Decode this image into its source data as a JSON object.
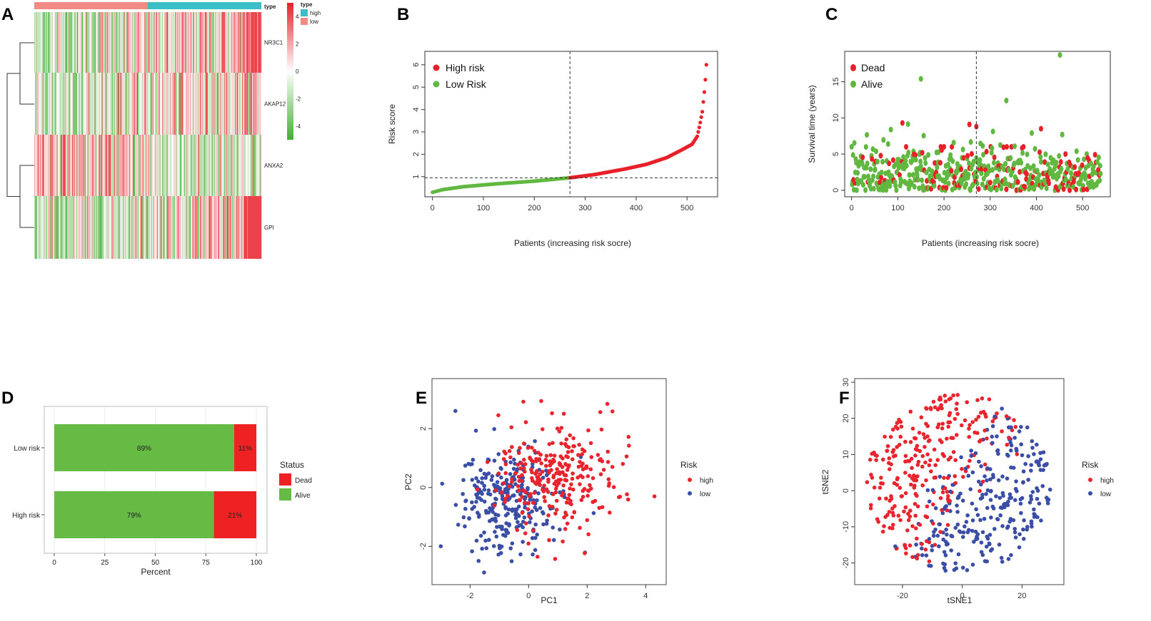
{
  "figure_labels": {
    "A": "A",
    "B": "B",
    "C": "C",
    "D": "D",
    "E": "E",
    "F": "F"
  },
  "chart_data": [
    {
      "id": "A",
      "type": "heatmap",
      "genes": [
        "NR3C1",
        "AKAP12",
        "ANXA2",
        "GPI"
      ],
      "annotation": {
        "title": "type",
        "groups": [
          "high",
          "low"
        ],
        "colors": {
          "high": "#3bbfc6",
          "low": "#f08a85"
        }
      },
      "scale": {
        "ticks": [
          4,
          2,
          0,
          -2,
          -4
        ],
        "min": -5,
        "max": 5,
        "colors": [
          "#40b030",
          "#ffffff",
          "#e8202a"
        ]
      },
      "n_patients": 540,
      "order": "low risk first, then high risk"
    },
    {
      "id": "B",
      "type": "scatter",
      "xlabel": "Patients (increasing risk socre)",
      "ylabel": "Risk score",
      "xticks": [
        0,
        100,
        200,
        300,
        400,
        500
      ],
      "yticks": [
        1,
        2,
        3,
        4,
        5,
        6
      ],
      "xlim": [
        -15,
        560
      ],
      "ylim": [
        0.1,
        6.6
      ],
      "cutoff_index": 270,
      "cutoff_value": 0.95,
      "n": 540,
      "series": [
        {
          "name": "High risk",
          "color": "#e8202a"
        },
        {
          "name": "Low Risk",
          "color": "#60b840"
        }
      ],
      "curve_knots": {
        "x": [
          0,
          20,
          60,
          120,
          200,
          270,
          320,
          380,
          420,
          460,
          490,
          510,
          520,
          525,
          530,
          535,
          538,
          540
        ],
        "y": [
          0.3,
          0.42,
          0.55,
          0.67,
          0.8,
          0.95,
          1.1,
          1.35,
          1.55,
          1.85,
          2.2,
          2.45,
          2.8,
          3.3,
          3.9,
          5.0,
          6.0,
          6.4
        ]
      }
    },
    {
      "id": "C",
      "type": "scatter",
      "xlabel": "Patients (increasing risk socre)",
      "ylabel": "Survival time (years)",
      "xticks": [
        0,
        100,
        200,
        300,
        400,
        500
      ],
      "yticks": [
        0,
        5,
        10,
        15
      ],
      "xlim": [
        -15,
        560
      ],
      "ylim": [
        -0.9,
        19.2
      ],
      "cutoff_index": 270,
      "n": 540,
      "series": [
        {
          "name": "Dead",
          "color": "#e8202a"
        },
        {
          "name": "Alive",
          "color": "#60b840"
        }
      ],
      "highlights": [
        {
          "x": 451,
          "y": 18.7,
          "status": "Alive"
        },
        {
          "x": 150,
          "y": 15.4,
          "status": "Alive"
        },
        {
          "x": 335,
          "y": 12.4,
          "status": "Alive"
        },
        {
          "x": 110,
          "y": 9.3,
          "status": "Dead"
        },
        {
          "x": 255,
          "y": 9.1,
          "status": "Dead"
        },
        {
          "x": 270,
          "y": 8.8,
          "status": "Dead"
        },
        {
          "x": 410,
          "y": 8.5,
          "status": "Dead"
        }
      ]
    },
    {
      "id": "D",
      "type": "bar",
      "orientation": "horizontal",
      "stacked": true,
      "categories": [
        "Low risk",
        "High risk"
      ],
      "series": [
        {
          "name": "Alive",
          "color": "#66bb44",
          "values": [
            89,
            79
          ]
        },
        {
          "name": "Dead",
          "color": "#ee2222",
          "values": [
            11,
            21
          ]
        }
      ],
      "labels": [
        [
          "89%",
          "11%"
        ],
        [
          "79%",
          "21%"
        ]
      ],
      "xlabel": "Percent",
      "xticks": [
        0,
        25,
        50,
        75,
        100
      ],
      "legend_title": "Status",
      "legend_items": [
        "Dead",
        "Alive"
      ]
    },
    {
      "id": "E",
      "type": "scatter",
      "xlabel": "PC1",
      "ylabel": "PC2",
      "xticks": [
        -2,
        0,
        2,
        4
      ],
      "yticks": [
        -2,
        0,
        2
      ],
      "xlim": [
        -3.3,
        4.7
      ],
      "ylim": [
        -3.3,
        3.7
      ],
      "legend_title": "Risk",
      "legend_items": [
        "high",
        "low"
      ],
      "series": [
        {
          "name": "high",
          "color": "#e8252e",
          "n": 270,
          "center": [
            0.9,
            0.4
          ],
          "sd": [
            1.0,
            0.95
          ]
        },
        {
          "name": "low",
          "color": "#3b4ea6",
          "n": 270,
          "center": [
            -0.75,
            -0.55
          ],
          "sd": [
            0.85,
            0.85
          ]
        }
      ],
      "outliers": [
        {
          "x": 4.3,
          "y": -0.3,
          "series": "high"
        },
        {
          "x": -2.5,
          "y": 2.6,
          "series": "low"
        }
      ]
    },
    {
      "id": "F",
      "type": "scatter",
      "xlabel": "tSNE1",
      "ylabel": "tSNE2",
      "xticks": [
        -20,
        0,
        20
      ],
      "yticks": [
        -20,
        -10,
        0,
        10,
        20,
        30
      ],
      "xlim": [
        -36,
        34
      ],
      "ylim": [
        -26,
        31
      ],
      "legend_title": "Risk",
      "legend_items": [
        "high",
        "low"
      ],
      "series": [
        {
          "name": "high",
          "color": "#e8252e",
          "n": 270
        },
        {
          "name": "low",
          "color": "#3b4ea6",
          "n": 270
        }
      ]
    }
  ]
}
